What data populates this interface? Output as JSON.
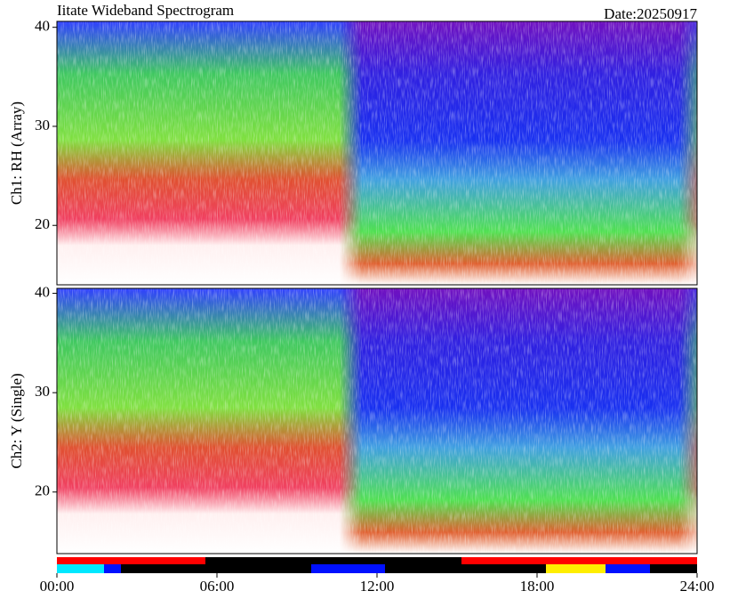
{
  "chart_data": [
    {
      "type": "spectrogram",
      "title": "Iitate Wideband Spectrogram",
      "date": "Date:20250917",
      "ylabel": "Ch1: RH (Array)",
      "ylim": [
        14,
        40.6
      ],
      "yticks": [
        20,
        30,
        40
      ],
      "xlim": [
        0,
        24
      ]
    },
    {
      "type": "spectrogram",
      "ylabel": "Ch2: Y (Single)",
      "ylim": [
        13.8,
        40.5
      ],
      "yticks": [
        20,
        30,
        40
      ],
      "xlim": [
        0,
        24
      ],
      "xticks": [
        {
          "value": 0,
          "label": "00:00"
        },
        {
          "value": 6,
          "label": "06:00"
        },
        {
          "value": 12,
          "label": "12:00"
        },
        {
          "value": 18,
          "label": "18:00"
        },
        {
          "value": 24,
          "label": "24:00"
        }
      ]
    }
  ]
}
